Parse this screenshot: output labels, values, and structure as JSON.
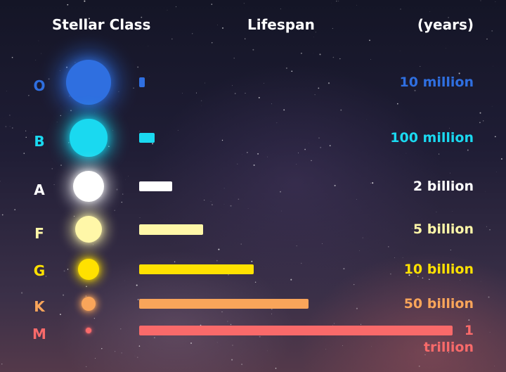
{
  "header": {
    "col1": "Stellar Class",
    "col2": "Lifespan",
    "col3": "(years)"
  },
  "chart_data": {
    "type": "bar",
    "orientation": "horizontal",
    "title": "",
    "xlabel": "Lifespan",
    "ylabel": "Stellar Class",
    "unit_label": "(years)",
    "categories": [
      "O",
      "B",
      "A",
      "F",
      "G",
      "K",
      "M"
    ],
    "values": [
      10000000,
      100000000,
      2000000000,
      5000000000,
      10000000000,
      50000000000,
      1000000000000
    ],
    "value_labels": [
      "10 million",
      "100 million",
      "2 billion",
      "5 billion",
      "10 billion",
      "50 billion",
      "1 trillion"
    ],
    "bar_display_fraction": [
      0.017,
      0.05,
      0.105,
      0.205,
      0.365,
      0.54,
      1.0
    ],
    "star_size_fraction": [
      1.0,
      0.83,
      0.7,
      0.6,
      0.47,
      0.32,
      0.13
    ],
    "colors": [
      "#2f6fe0",
      "#1ad9f0",
      "#ffffff",
      "#fff7a8",
      "#ffe100",
      "#f9a55a",
      "#f96a6a"
    ],
    "grid": false,
    "legend": "none"
  }
}
